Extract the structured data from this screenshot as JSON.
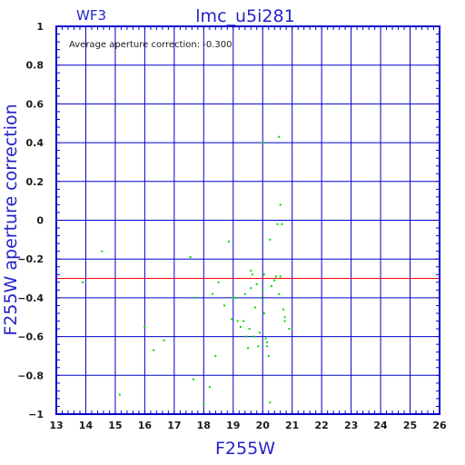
{
  "header": {
    "chip": "WF3",
    "title": "lmc_u5i281"
  },
  "annotation": "Average aperture correction: -0.300",
  "chart_data": {
    "type": "scatter",
    "xlabel": "F255W",
    "ylabel": "F255W aperture correction",
    "xlim": [
      13,
      26
    ],
    "ylim": [
      -1,
      1
    ],
    "x_ticks": [
      13,
      14,
      15,
      16,
      17,
      18,
      19,
      20,
      21,
      22,
      23,
      24,
      25,
      26
    ],
    "y_ticks": [
      1,
      0.8,
      0.6,
      0.4,
      0.2,
      0,
      -0.2,
      -0.4,
      -0.6,
      -0.8,
      -1
    ],
    "y_tick_labels": [
      "1",
      "0.8",
      "0.6",
      "0.4",
      "0.2",
      "0",
      "−0.2",
      "−0.4",
      "−0.6",
      "−0.8",
      "−1"
    ],
    "grid": true,
    "reference_line": {
      "y": -0.3,
      "color": "#ff0000"
    },
    "axis_color": "#0000cc",
    "point_color": "#00d800",
    "points": [
      [
        13.9,
        -0.32
      ],
      [
        14.55,
        -0.16
      ],
      [
        15.15,
        -0.9
      ],
      [
        16.0,
        -0.55
      ],
      [
        16.3,
        -0.67
      ],
      [
        16.65,
        -0.62
      ],
      [
        17.55,
        -0.19
      ],
      [
        17.65,
        -0.82
      ],
      [
        17.7,
        -0.4
      ],
      [
        18.0,
        -0.95
      ],
      [
        18.2,
        -0.86
      ],
      [
        18.3,
        -0.38
      ],
      [
        18.4,
        -0.7
      ],
      [
        18.5,
        -0.32
      ],
      [
        18.7,
        -0.44
      ],
      [
        18.85,
        -0.11
      ],
      [
        18.95,
        -0.51
      ],
      [
        19.0,
        -0.4
      ],
      [
        19.1,
        -0.4
      ],
      [
        19.15,
        -0.52
      ],
      [
        19.25,
        -0.55
      ],
      [
        19.35,
        -0.52
      ],
      [
        19.4,
        -0.38
      ],
      [
        19.45,
        -0.6
      ],
      [
        19.5,
        -0.66
      ],
      [
        19.55,
        -0.56
      ],
      [
        19.6,
        -0.26
      ],
      [
        19.6,
        -0.35
      ],
      [
        19.65,
        -0.28
      ],
      [
        19.7,
        -0.6
      ],
      [
        19.75,
        -0.45
      ],
      [
        19.8,
        -0.33
      ],
      [
        19.85,
        -0.65
      ],
      [
        19.9,
        -0.58
      ],
      [
        19.95,
        -0.4
      ],
      [
        20.0,
        -0.36
      ],
      [
        20.0,
        0.4
      ],
      [
        20.05,
        -0.28
      ],
      [
        20.05,
        -0.48
      ],
      [
        20.1,
        -0.61
      ],
      [
        20.15,
        -0.65
      ],
      [
        20.15,
        -0.63
      ],
      [
        20.2,
        -0.7
      ],
      [
        20.25,
        -0.1
      ],
      [
        20.25,
        -0.94
      ],
      [
        20.3,
        -0.34
      ],
      [
        20.4,
        -0.31
      ],
      [
        20.45,
        -0.29
      ],
      [
        20.5,
        -0.02
      ],
      [
        20.55,
        -0.38
      ],
      [
        20.55,
        0.43
      ],
      [
        20.6,
        0.08
      ],
      [
        20.6,
        -0.29
      ],
      [
        20.65,
        -0.02
      ],
      [
        20.7,
        -0.46
      ],
      [
        20.75,
        -0.5
      ],
      [
        20.75,
        -0.52
      ],
      [
        20.9,
        -0.56
      ]
    ]
  }
}
